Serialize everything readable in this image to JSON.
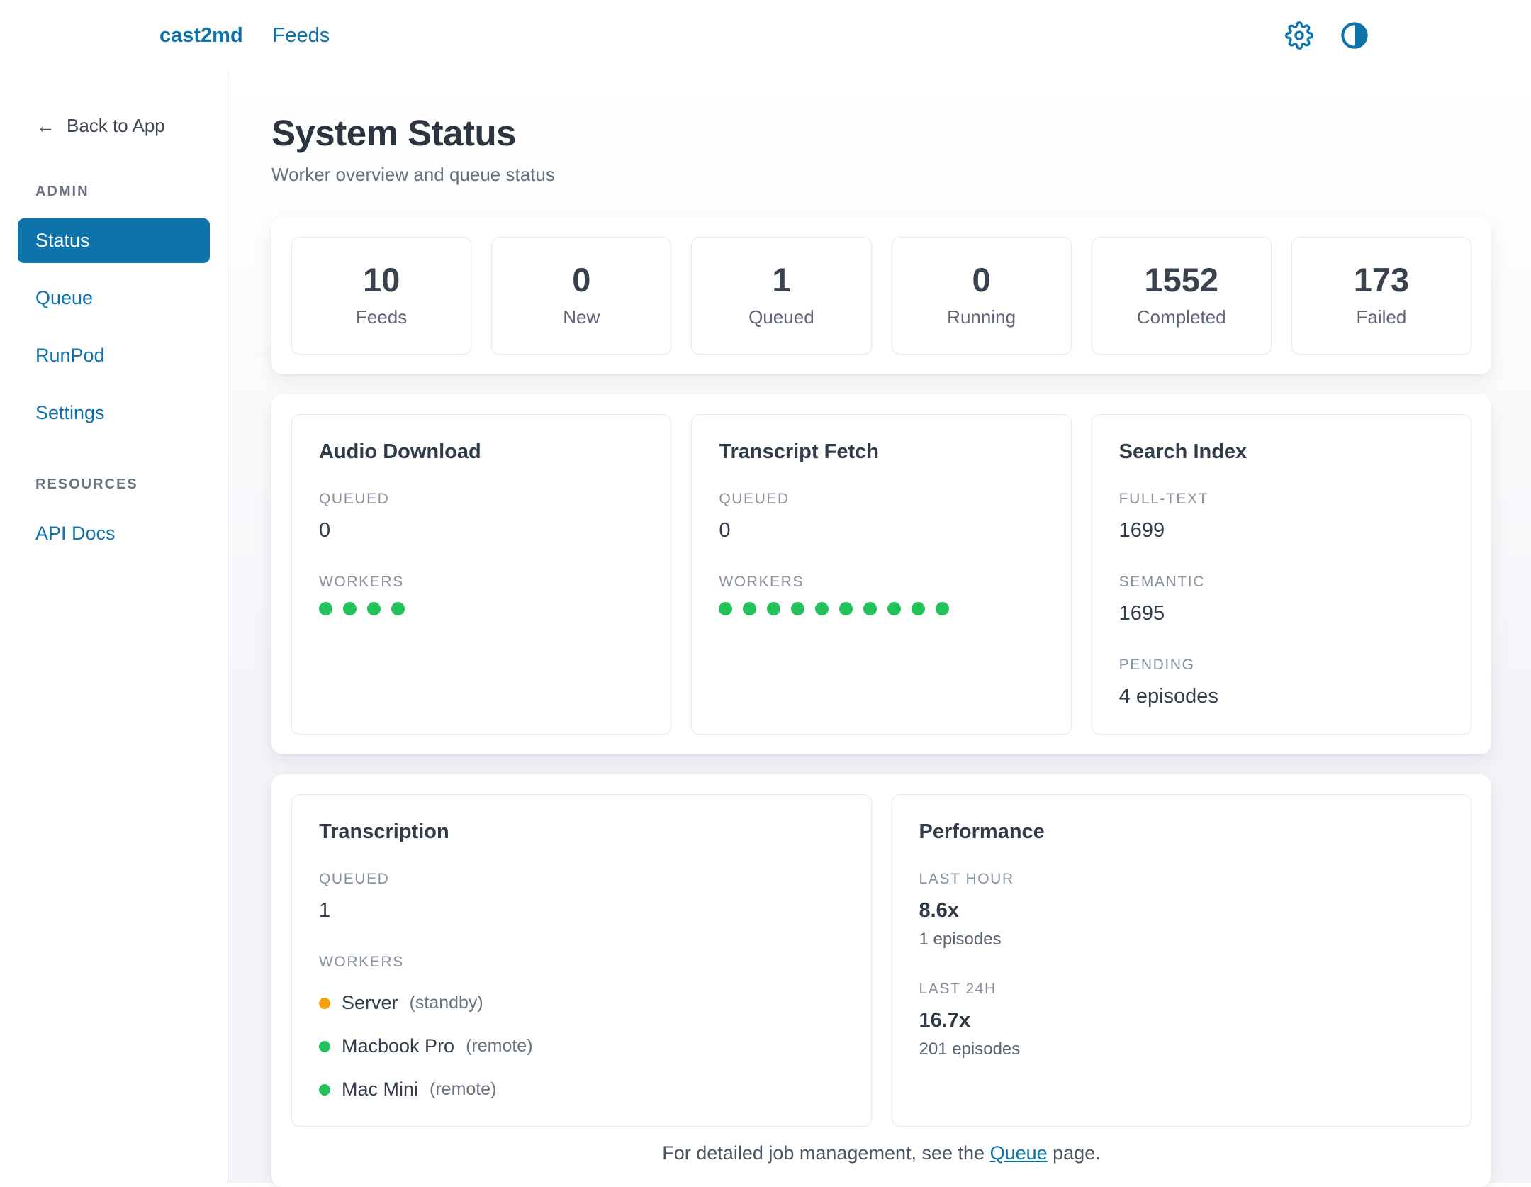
{
  "topbar": {
    "logo": "cast2md",
    "nav_feeds": "Feeds"
  },
  "sidebar": {
    "back_label": "Back to App",
    "back_arrow": "←",
    "admin_heading": "ADMIN",
    "admin_items": [
      {
        "label": "Status",
        "active": true
      },
      {
        "label": "Queue",
        "active": false
      },
      {
        "label": "RunPod",
        "active": false
      },
      {
        "label": "Settings",
        "active": false
      }
    ],
    "resources_heading": "RESOURCES",
    "resources_items": [
      {
        "label": "API Docs",
        "active": false
      }
    ]
  },
  "header": {
    "title": "System Status",
    "subtitle": "Worker overview and queue status"
  },
  "stats": [
    {
      "value": "10",
      "label": "Feeds"
    },
    {
      "value": "0",
      "label": "New"
    },
    {
      "value": "1",
      "label": "Queued"
    },
    {
      "value": "0",
      "label": "Running"
    },
    {
      "value": "1552",
      "label": "Completed"
    },
    {
      "value": "173",
      "label": "Failed"
    }
  ],
  "queues": {
    "audio_download": {
      "title": "Audio Download",
      "queued_label": "QUEUED",
      "queued": "0",
      "workers_label": "WORKERS",
      "worker_count": 4
    },
    "transcript_fetch": {
      "title": "Transcript Fetch",
      "queued_label": "QUEUED",
      "queued": "0",
      "workers_label": "WORKERS",
      "worker_count": 10
    },
    "search_index": {
      "title": "Search Index",
      "rows": [
        {
          "label": "FULL-TEXT",
          "value": "1699"
        },
        {
          "label": "SEMANTIC",
          "value": "1695"
        },
        {
          "label": "PENDING",
          "value": "4 episodes"
        }
      ]
    }
  },
  "transcription": {
    "title": "Transcription",
    "queued_label": "QUEUED",
    "queued": "1",
    "workers_label": "WORKERS",
    "workers": [
      {
        "name": "Server",
        "status": "(standby)",
        "color": "#f6a10b"
      },
      {
        "name": "Macbook Pro",
        "status": "(remote)",
        "color": "#23c35c"
      },
      {
        "name": "Mac Mini",
        "status": "(remote)",
        "color": "#23c35c"
      }
    ]
  },
  "performance": {
    "title": "Performance",
    "sections": [
      {
        "label": "LAST HOUR",
        "value": "8.6x",
        "sub": "1 episodes"
      },
      {
        "label": "LAST 24H",
        "value": "16.7x",
        "sub": "201 episodes"
      }
    ]
  },
  "footer": {
    "pre": "For detailed job management, see the ",
    "link": "Queue",
    "post": " page."
  },
  "colors": {
    "accent": "#0e72ab",
    "green": "#23c35c",
    "orange": "#f6a10b"
  }
}
